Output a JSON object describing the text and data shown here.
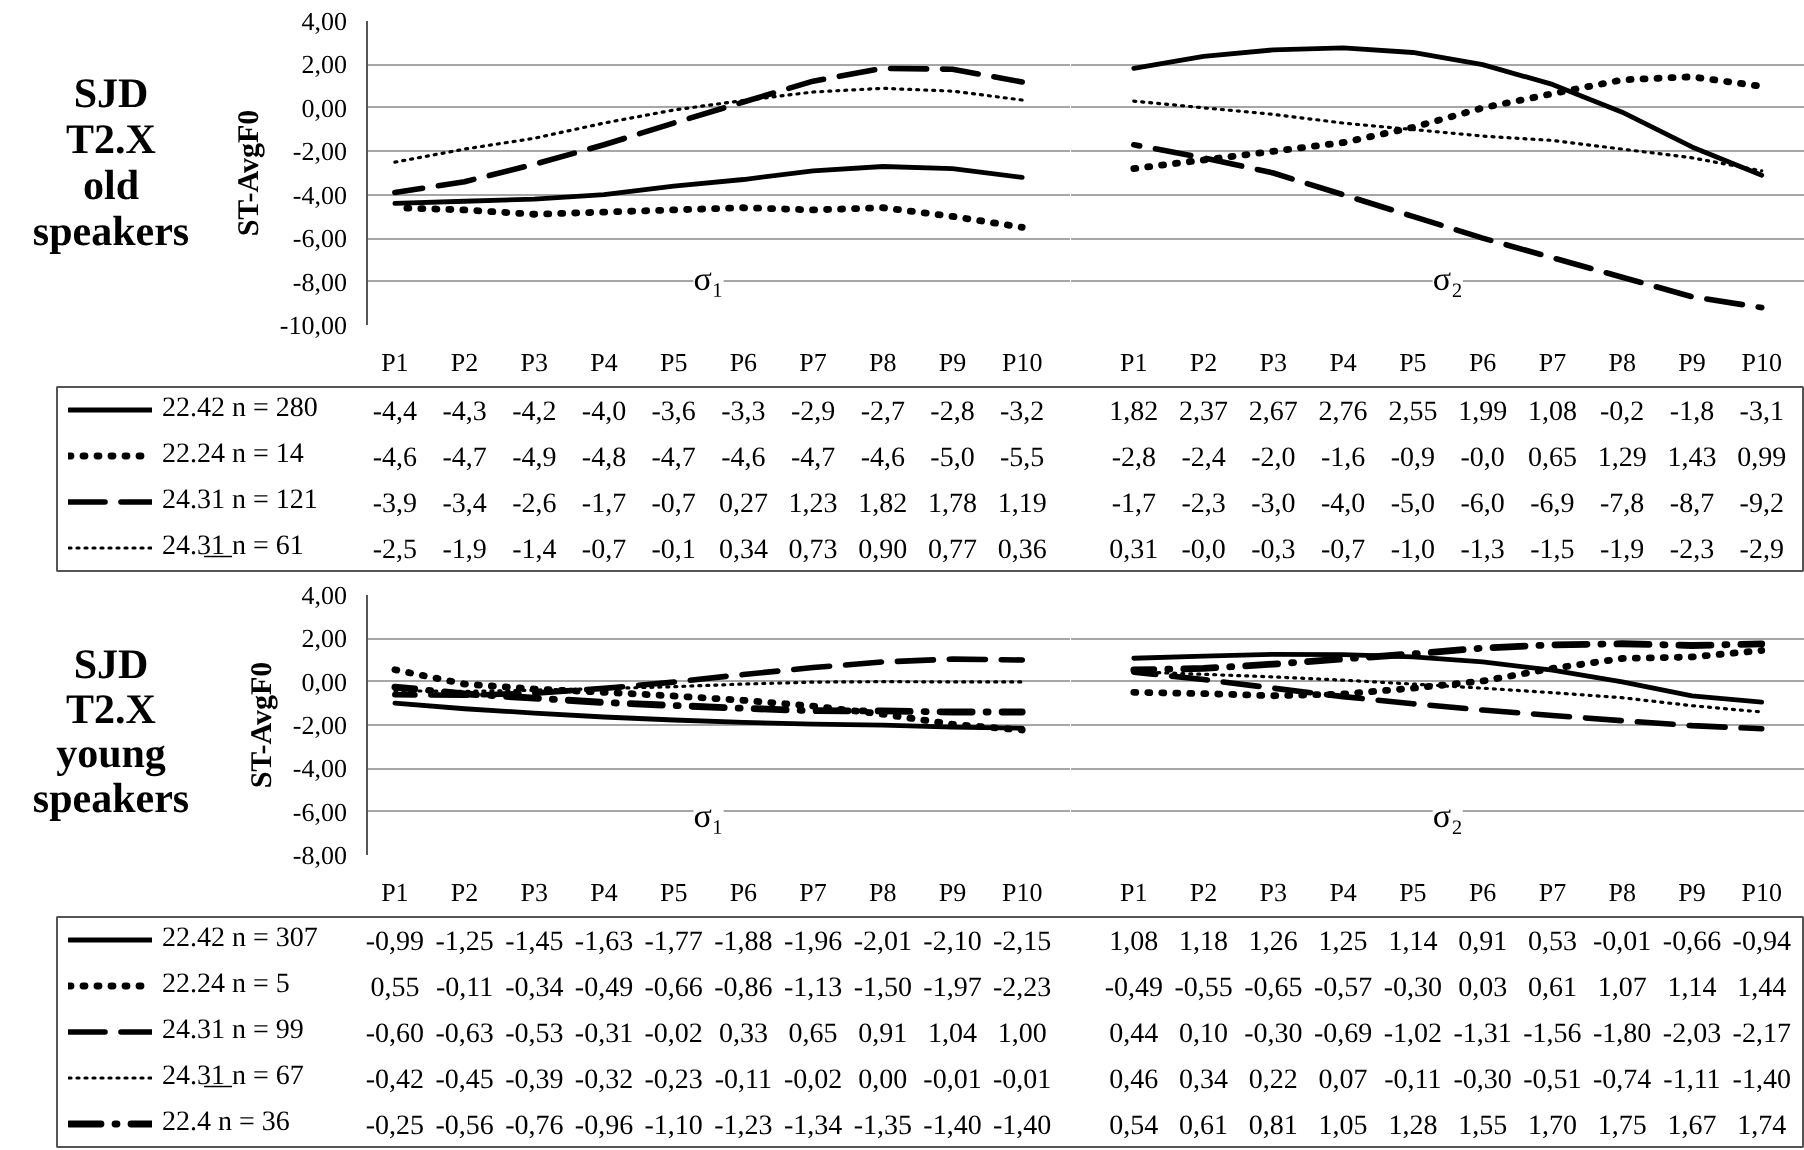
{
  "chart_data": [
    {
      "type": "line",
      "title": "SJD T2.X old speakers",
      "ylabel": "ST-AvgF0",
      "categories": [
        "P1",
        "P2",
        "P3",
        "P4",
        "P5",
        "P6",
        "P7",
        "P8",
        "P9",
        "P10"
      ],
      "ylim": [
        -10,
        4
      ],
      "yticks": [
        {
          "value": -10,
          "label": "-10,00"
        },
        {
          "value": -8,
          "label": "-8,00"
        },
        {
          "value": -6,
          "label": "-6,00"
        },
        {
          "value": -4,
          "label": "-4,00"
        },
        {
          "value": -2,
          "label": "-2,00"
        },
        {
          "value": 0,
          "label": "0,00"
        },
        {
          "value": 2,
          "label": "2,00"
        },
        {
          "value": 4,
          "label": "4,00"
        }
      ],
      "grid": "y",
      "legend": "bottom",
      "annotations": [
        "σ₁"
      ],
      "series": [
        {
          "name": "22.42 n = 280",
          "color": "#000000",
          "line_style": "solid",
          "values": [
            -4.4,
            -4.3,
            -4.2,
            -4.0,
            -3.6,
            -3.3,
            -2.9,
            -2.7,
            -2.8,
            -3.2
          ],
          "value_labels": [
            "-4,4",
            "-4,3",
            "-4,2",
            "-4,0",
            "-3,6",
            "-3,3",
            "-2,9",
            "-2,7",
            "-2,8",
            "-3,2"
          ]
        },
        {
          "name": "22.24 n = 14",
          "color": "#000000",
          "line_style": "dotted",
          "values": [
            -4.6,
            -4.7,
            -4.9,
            -4.8,
            -4.7,
            -4.6,
            -4.7,
            -4.6,
            -5.0,
            -5.5
          ],
          "value_labels": [
            "-4,6",
            "-4,7",
            "-4,9",
            "-4,8",
            "-4,7",
            "-4,6",
            "-4,7",
            "-4,6",
            "-5,0",
            "-5,5"
          ]
        },
        {
          "name": "24.31 n = 121",
          "color": "#000000",
          "line_style": "dashed",
          "values": [
            -3.9,
            -3.4,
            -2.6,
            -1.7,
            -0.7,
            0.27,
            1.23,
            1.82,
            1.78,
            1.19
          ],
          "value_labels": [
            "-3,9",
            "-3,4",
            "-2,6",
            "-1,7",
            "-0,7",
            "0,27",
            "1,23",
            "1,82",
            "1,78",
            "1,19"
          ]
        },
        {
          "name": "24.3̲1̲ n = 61",
          "color": "#000000",
          "line_style": "densely dotted",
          "values": [
            -2.5,
            -1.9,
            -1.4,
            -0.7,
            -0.1,
            0.34,
            0.73,
            0.9,
            0.77,
            0.36
          ],
          "value_labels": [
            "-2,5",
            "-1,9",
            "-1,4",
            "-0,7",
            "-0,1",
            "0,34",
            "0,73",
            "0,90",
            "0,77",
            "0,36"
          ]
        }
      ]
    },
    {
      "type": "line",
      "categories": [
        "P1",
        "P2",
        "P3",
        "P4",
        "P5",
        "P6",
        "P7",
        "P8",
        "P9",
        "P10"
      ],
      "ylim": [
        -10,
        4
      ],
      "yticks": [
        -10,
        -8,
        -6,
        -4,
        -2,
        0,
        2,
        4
      ],
      "tick_labels": "x",
      "grid": "y",
      "annotations": [
        "σ₂"
      ],
      "series": [
        {
          "color": "#000000",
          "line_style": "solid",
          "values": [
            1.82,
            2.37,
            2.67,
            2.76,
            2.55,
            1.99,
            1.08,
            -0.2,
            -1.8,
            -3.1
          ],
          "value_labels": [
            "1,82",
            "2,37",
            "2,67",
            "2,76",
            "2,55",
            "1,99",
            "1,08",
            "-0,2",
            "-1,8",
            "-3,1"
          ]
        },
        {
          "color": "#000000",
          "line_style": "dotted",
          "values": [
            -2.8,
            -2.4,
            -2.0,
            -1.6,
            -0.9,
            0.0,
            0.65,
            1.29,
            1.43,
            0.99
          ],
          "value_labels": [
            "-2,8",
            "-2,4",
            "-2,0",
            "-1,6",
            "-0,9",
            "-0,0",
            "0,65",
            "1,29",
            "1,43",
            "0,99"
          ]
        },
        {
          "color": "#000000",
          "line_style": "dashed",
          "values": [
            -1.7,
            -2.3,
            -3.0,
            -4.0,
            -5.0,
            -6.0,
            -6.9,
            -7.8,
            -8.7,
            -9.2
          ],
          "value_labels": [
            "-1,7",
            "-2,3",
            "-3,0",
            "-4,0",
            "-5,0",
            "-6,0",
            "-6,9",
            "-7,8",
            "-8,7",
            "-9,2"
          ]
        },
        {
          "color": "#000000",
          "line_style": "densely dotted",
          "values": [
            0.31,
            0.0,
            -0.3,
            -0.7,
            -1.0,
            -1.3,
            -1.5,
            -1.9,
            -2.3,
            -2.9
          ],
          "value_labels": [
            "0,31",
            "-0,0",
            "-0,3",
            "-0,7",
            "-1,0",
            "-1,3",
            "-1,5",
            "-1,9",
            "-2,3",
            "-2,9"
          ]
        }
      ]
    },
    {
      "type": "line",
      "title": "SJD T2.X young speakers",
      "ylabel": "ST-AvgF0",
      "categories": [
        "P1",
        "P2",
        "P3",
        "P4",
        "P5",
        "P6",
        "P7",
        "P8",
        "P9",
        "P10"
      ],
      "ylim": [
        -8,
        4
      ],
      "yticks": [
        {
          "value": -8,
          "label": "-8,00"
        },
        {
          "value": -6,
          "label": "-6,00"
        },
        {
          "value": -4,
          "label": "-4,00"
        },
        {
          "value": -2,
          "label": "-2,00"
        },
        {
          "value": 0,
          "label": "0,00"
        },
        {
          "value": 2,
          "label": "2,00"
        },
        {
          "value": 4,
          "label": "4,00"
        }
      ],
      "grid": "y",
      "legend": "bottom",
      "annotations": [
        "σ₁"
      ],
      "series": [
        {
          "name": "22.42 n = 307",
          "color": "#000000",
          "line_style": "solid",
          "values": [
            -0.99,
            -1.25,
            -1.45,
            -1.63,
            -1.77,
            -1.88,
            -1.96,
            -2.01,
            -2.1,
            -2.15
          ],
          "value_labels": [
            "-0,99",
            "-1,25",
            "-1,45",
            "-1,63",
            "-1,77",
            "-1,88",
            "-1,96",
            "-2,01",
            "-2,10",
            "-2,15"
          ]
        },
        {
          "name": "22.24 n = 5",
          "color": "#000000",
          "line_style": "dotted",
          "values": [
            0.55,
            -0.11,
            -0.34,
            -0.49,
            -0.66,
            -0.86,
            -1.13,
            -1.5,
            -1.97,
            -2.23
          ],
          "value_labels": [
            "0,55",
            "-0,11",
            "-0,34",
            "-0,49",
            "-0,66",
            "-0,86",
            "-1,13",
            "-1,50",
            "-1,97",
            "-2,23"
          ]
        },
        {
          "name": "24.31 n = 99",
          "color": "#000000",
          "line_style": "dashed",
          "values": [
            -0.6,
            -0.63,
            -0.53,
            -0.31,
            -0.02,
            0.33,
            0.65,
            0.91,
            1.04,
            1.0
          ],
          "value_labels": [
            "-0,60",
            "-0,63",
            "-0,53",
            "-0,31",
            "-0,02",
            "0,33",
            "0,65",
            "0,91",
            "1,04",
            "1,00"
          ]
        },
        {
          "name": "24.3̲1̲ n = 67",
          "color": "#000000",
          "line_style": "densely dotted",
          "values": [
            -0.42,
            -0.45,
            -0.39,
            -0.32,
            -0.23,
            -0.11,
            -0.02,
            0.0,
            -0.01,
            -0.01
          ],
          "value_labels": [
            "-0,42",
            "-0,45",
            "-0,39",
            "-0,32",
            "-0,23",
            "-0,11",
            "-0,02",
            "0,00",
            "-0,01",
            "-0,01"
          ]
        },
        {
          "name": "22.4 n = 36",
          "color": "#000000",
          "line_style": "dashdot",
          "values": [
            -0.25,
            -0.56,
            -0.76,
            -0.96,
            -1.1,
            -1.23,
            -1.34,
            -1.35,
            -1.4,
            -1.4
          ],
          "value_labels": [
            "-0,25",
            "-0,56",
            "-0,76",
            "-0,96",
            "-1,10",
            "-1,23",
            "-1,34",
            "-1,35",
            "-1,40",
            "-1,40"
          ]
        }
      ]
    },
    {
      "type": "line",
      "categories": [
        "P1",
        "P2",
        "P3",
        "P4",
        "P5",
        "P6",
        "P7",
        "P8",
        "P9",
        "P10"
      ],
      "ylim": [
        -8,
        4
      ],
      "yticks": [
        -8,
        -6,
        -4,
        -2,
        0,
        2,
        4
      ],
      "tick_labels": "x",
      "grid": "y",
      "annotations": [
        "σ₂"
      ],
      "series": [
        {
          "color": "#000000",
          "line_style": "solid",
          "values": [
            1.08,
            1.18,
            1.26,
            1.25,
            1.14,
            0.91,
            0.53,
            -0.01,
            -0.66,
            -0.94
          ],
          "value_labels": [
            "1,08",
            "1,18",
            "1,26",
            "1,25",
            "1,14",
            "0,91",
            "0,53",
            "-0,01",
            "-0,66",
            "-0,94"
          ]
        },
        {
          "color": "#000000",
          "line_style": "dotted",
          "values": [
            -0.49,
            -0.55,
            -0.65,
            -0.57,
            -0.3,
            0.03,
            0.61,
            1.07,
            1.14,
            1.44
          ],
          "value_labels": [
            "-0,49",
            "-0,55",
            "-0,65",
            "-0,57",
            "-0,30",
            "0,03",
            "0,61",
            "1,07",
            "1,14",
            "1,44"
          ]
        },
        {
          "color": "#000000",
          "line_style": "dashed",
          "values": [
            0.44,
            0.1,
            -0.3,
            -0.69,
            -1.02,
            -1.31,
            -1.56,
            -1.8,
            -2.03,
            -2.17
          ],
          "value_labels": [
            "0,44",
            "0,10",
            "-0,30",
            "-0,69",
            "-1,02",
            "-1,31",
            "-1,56",
            "-1,80",
            "-2,03",
            "-2,17"
          ]
        },
        {
          "color": "#000000",
          "line_style": "densely dotted",
          "values": [
            0.46,
            0.34,
            0.22,
            0.07,
            -0.11,
            -0.3,
            -0.51,
            -0.74,
            -1.11,
            -1.4
          ],
          "value_labels": [
            "0,46",
            "0,34",
            "0,22",
            "0,07",
            "-0,11",
            "-0,30",
            "-0,51",
            "-0,74",
            "-1,11",
            "-1,40"
          ]
        },
        {
          "color": "#000000",
          "line_style": "dashdot",
          "values": [
            0.54,
            0.61,
            0.81,
            1.05,
            1.28,
            1.55,
            1.7,
            1.75,
            1.67,
            1.74
          ],
          "value_labels": [
            "0,54",
            "0,61",
            "0,81",
            "1,05",
            "1,28",
            "1,55",
            "1,70",
            "1,75",
            "1,67",
            "1,74"
          ]
        }
      ]
    }
  ]
}
